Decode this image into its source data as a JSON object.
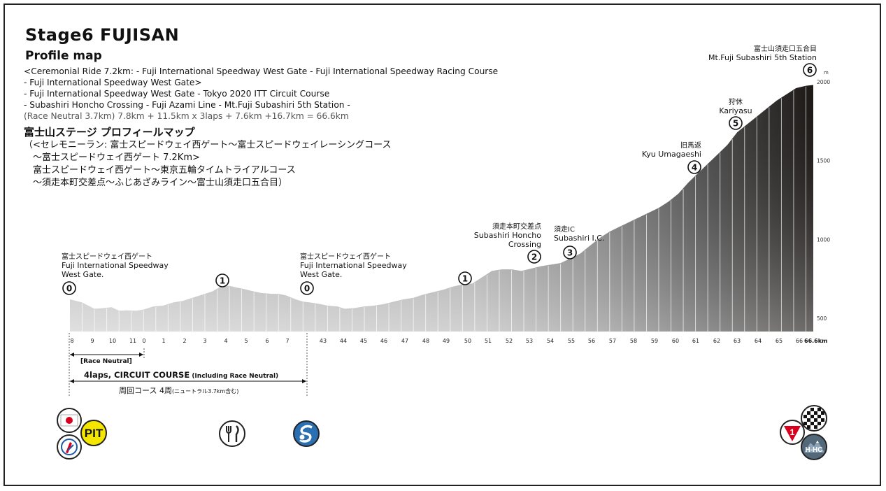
{
  "header": {
    "title": "Stage6 FUJISAN",
    "subtitle": "Profile map",
    "en_lines": [
      "<Ceremonial Ride 7.2km: - Fuji International Speedway West Gate - Fuji International Speedway Racing Course",
      "- Fuji International Speedway West Gate>",
      "- Fuji International Speedway West Gate - Tokyo 2020 ITT Circuit Course",
      "- Subashiri Honcho Crossing - Fuji Azami Line  - Mt.Fuji Subashiri 5th Station -"
    ],
    "en_formula_neutral": "(Race Neutral 3.7km)",
    "en_formula_rest": " 7.8km + 11.5km x 3laps + 7.6km +16.7km = 66.6km",
    "jp_heading": "富士山ステージ プロフィールマップ",
    "jp_lines": [
      "（<セレモニーラン: 富士スピードウェイ西ゲート〜富士スピードウェイレーシングコース",
      "　〜富士スピードウェイ西ゲート 7.2Km>",
      "　富士スピードウェイ西ゲート〜東京五輪タイムトライアルコース",
      "　〜須走本町交差点〜ふじあざみライン〜富士山須走口五合目）"
    ]
  },
  "chart_data": {
    "type": "area",
    "xlabel_unit": "66.6km",
    "ylabel_unit": "m",
    "ylim": [
      500,
      2000
    ],
    "y_ticks": [
      "500",
      "1000",
      "1500",
      "2000"
    ],
    "x_ticks": [
      "8",
      "9",
      "10",
      "11",
      "0",
      "1",
      "2",
      "3",
      "4",
      "5",
      "6",
      "7",
      "43",
      "44",
      "45",
      "46",
      "47",
      "48",
      "49",
      "50",
      "51",
      "52",
      "53",
      "54",
      "55",
      "56",
      "57",
      "58",
      "59",
      "60",
      "61",
      "62",
      "63",
      "64",
      "65",
      "66"
    ],
    "profile_ticks": [
      7.8,
      8.3,
      8.8,
      9.3,
      9.8,
      10.3,
      10.8,
      11.3,
      11.8,
      12.3,
      12.8,
      13.3,
      13.8,
      14.3,
      14.8,
      15.3,
      15.8,
      16.3,
      16.8,
      17.3,
      17.8,
      18.3,
      18.8,
      19.3,
      19.8,
      20.3,
      20.8,
      21.3,
      21.8,
      22.3,
      22.8,
      23.3,
      23.8,
      24.3,
      24.8,
      25.3,
      25.8,
      26.3,
      26.8,
      27.3,
      27.8,
      28.3,
      28.8,
      29.3,
      29.8,
      30.3,
      30.8,
      31.3,
      31.8,
      32.3,
      32.8,
      33.3,
      33.8,
      34.3,
      34.8,
      35.3,
      35.8,
      36.3,
      36.8,
      37.3,
      37.8,
      38.3,
      38.8,
      39.3,
      39.8,
      40.3,
      40.8,
      41.3,
      41.8,
      42.3,
      42.8,
      43.3,
      43.8,
      44.3,
      44.8,
      45.3,
      45.8,
      46.3,
      46.8,
      47.3,
      47.8,
      48.3,
      48.8,
      49.3,
      49.8,
      50.3,
      50.8,
      51.3,
      51.8,
      52.3,
      52.8,
      53.3,
      53.8,
      54.3,
      54.8,
      55.3,
      55.8,
      56.3,
      56.8,
      57.3,
      57.8,
      58.3,
      58.8,
      59.3,
      59.8,
      60.3,
      60.8,
      61.3,
      61.8,
      62.3,
      62.8,
      63.3,
      63.8,
      64.3,
      64.8,
      65.3,
      65.8,
      66.3,
      66.6
    ],
    "profile": [
      [
        0,
        620
      ],
      [
        0.5,
        600
      ],
      [
        1.0,
        560
      ],
      [
        1.4,
        565
      ],
      [
        1.7,
        570
      ],
      [
        2.0,
        548
      ],
      [
        2.3,
        550
      ],
      [
        2.7,
        548
      ],
      [
        3.0,
        555
      ],
      [
        3.4,
        575
      ],
      [
        3.8,
        580
      ],
      [
        4.2,
        600
      ],
      [
        4.6,
        610
      ],
      [
        5.0,
        630
      ],
      [
        5.4,
        650
      ],
      [
        5.8,
        670
      ],
      [
        6.2,
        705
      ],
      [
        6.5,
        705
      ],
      [
        6.8,
        695
      ],
      [
        7.1,
        685
      ],
      [
        7.5,
        670
      ],
      [
        7.8,
        660
      ],
      [
        8.2,
        655
      ],
      [
        8.5,
        655
      ],
      [
        8.8,
        645
      ],
      [
        9.2,
        620
      ],
      [
        9.5,
        605
      ],
      [
        9.8,
        600
      ],
      [
        10.2,
        590
      ],
      [
        10.5,
        580
      ],
      [
        10.9,
        575
      ],
      [
        11.2,
        560
      ],
      [
        11.6,
        565
      ],
      [
        12.0,
        575
      ],
      [
        12.4,
        580
      ],
      [
        12.8,
        590
      ],
      [
        13.2,
        605
      ],
      [
        13.6,
        620
      ],
      [
        14.0,
        630
      ],
      [
        14.4,
        650
      ],
      [
        14.8,
        665
      ],
      [
        15.2,
        680
      ],
      [
        15.6,
        700
      ],
      [
        16.0,
        715
      ],
      [
        16.4,
        720
      ],
      [
        16.8,
        760
      ],
      [
        17.2,
        800
      ],
      [
        17.6,
        810
      ],
      [
        18.0,
        810
      ],
      [
        18.4,
        800
      ],
      [
        18.8,
        815
      ],
      [
        19.2,
        830
      ],
      [
        19.6,
        840
      ],
      [
        20.0,
        850
      ],
      [
        20.4,
        880
      ],
      [
        20.8,
        910
      ],
      [
        21.2,
        960
      ],
      [
        21.6,
        1010
      ],
      [
        22.0,
        1050
      ],
      [
        22.4,
        1080
      ],
      [
        22.8,
        1110
      ],
      [
        23.2,
        1140
      ],
      [
        23.6,
        1170
      ],
      [
        24.0,
        1200
      ],
      [
        24.4,
        1240
      ],
      [
        24.8,
        1290
      ],
      [
        25.2,
        1360
      ],
      [
        25.6,
        1420
      ],
      [
        26.0,
        1480
      ],
      [
        26.4,
        1540
      ],
      [
        26.8,
        1600
      ],
      [
        27.2,
        1680
      ],
      [
        27.6,
        1730
      ],
      [
        28.0,
        1780
      ],
      [
        28.4,
        1830
      ],
      [
        28.8,
        1880
      ],
      [
        29.2,
        1920
      ],
      [
        29.6,
        1960
      ],
      [
        30.0,
        1975
      ],
      [
        30.3,
        1980
      ]
    ],
    "waypoints": [
      {
        "num": "0",
        "jp": "富士スピードウェイ西ゲート",
        "en1": "Fuji International Speedway",
        "en2": "West Gate."
      },
      {
        "num": "1"
      },
      {
        "num": "0",
        "jp": "富士スピードウェイ西ゲート",
        "en1": "Fuji International Speedway",
        "en2": "West Gate."
      },
      {
        "num": "1"
      },
      {
        "num": "2",
        "jp": "須走本町交差点",
        "en1": "Subashiri Honcho",
        "en2": "Crossing"
      },
      {
        "num": "3",
        "jp": "須走IC",
        "en1": "Subashiri I.C."
      },
      {
        "num": "4",
        "jp": "旧馬返",
        "en1": "Kyu Umagaeshi"
      },
      {
        "num": "5",
        "jp": "狩休",
        "en1": "Kariyasu"
      },
      {
        "num": "6",
        "jp": "富士山須走口五合目",
        "en1": "Mt.Fuji Subashiri 5th Station"
      }
    ],
    "race_neutral_label": "[Race Neutral]",
    "circuit_label_bold": "4laps, CIRCUIT COURSE",
    "circuit_label_small": " (Including Race Neutral)",
    "circuit_jp_big": "周回コース 4周",
    "circuit_jp_small": "(ニュートラル3.7km含む)"
  },
  "icons": {
    "pit_label": "PIT",
    "hc_label": "H-HC",
    "cat_label": "1"
  }
}
